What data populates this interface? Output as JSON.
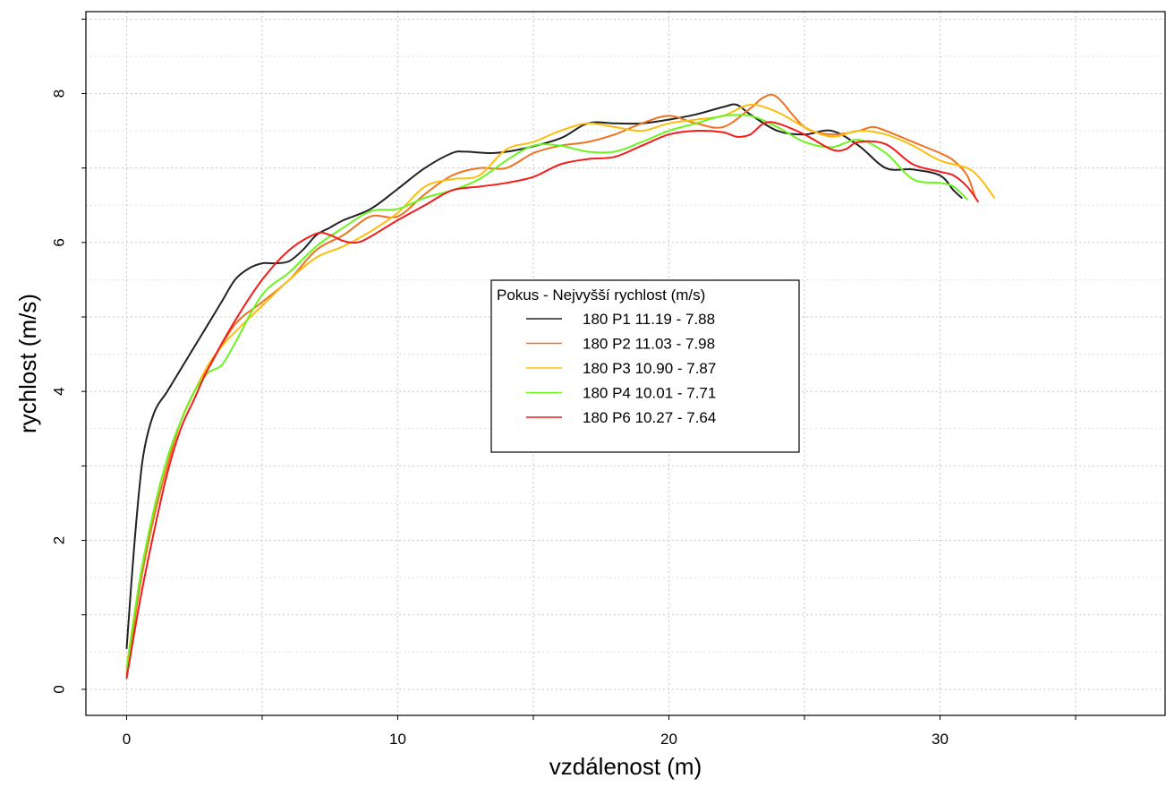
{
  "chart_data": {
    "type": "line",
    "xlabel": "vzdálenost (m)",
    "ylabel": "rychlost (m/s)",
    "xlim": [
      -1.5,
      38.3
    ],
    "ylim": [
      -0.35,
      9.1
    ],
    "xticks": [
      0,
      10,
      20,
      30
    ],
    "xtick_labels": [
      "0",
      "10",
      "20",
      "30"
    ],
    "yticks": [
      0,
      2,
      4,
      6,
      8
    ],
    "ytick_labels": [
      "0",
      "2",
      "4",
      "6",
      "8"
    ],
    "grid": true,
    "legend": {
      "title": "Pokus - Nejvyšší rychlost (m/s)",
      "position": "center"
    },
    "series": [
      {
        "name": "180 P1 11.19 - 7.88",
        "color": "#222222",
        "x": [
          0,
          0.3,
          0.6,
          1,
          1.5,
          2,
          2.5,
          3,
          3.5,
          4,
          4.5,
          5,
          5.5,
          6,
          6.5,
          7,
          7.5,
          8,
          9,
          10,
          11,
          12,
          12.5,
          13.5,
          14.5,
          16,
          17,
          18,
          19,
          20,
          21,
          22,
          22.5,
          23,
          24,
          25,
          26,
          27,
          28,
          29,
          30,
          30.5,
          30.8
        ],
        "y": [
          0.55,
          2.0,
          3.1,
          3.7,
          4.0,
          4.3,
          4.6,
          4.9,
          5.2,
          5.5,
          5.65,
          5.72,
          5.72,
          5.75,
          5.9,
          6.1,
          6.2,
          6.3,
          6.45,
          6.72,
          7.0,
          7.2,
          7.22,
          7.2,
          7.25,
          7.4,
          7.6,
          7.6,
          7.6,
          7.65,
          7.72,
          7.82,
          7.85,
          7.72,
          7.5,
          7.45,
          7.5,
          7.3,
          7.0,
          6.98,
          6.9,
          6.7,
          6.6
        ]
      },
      {
        "name": "180 P2 11.03 - 7.98",
        "color": "#ef7222",
        "x": [
          0,
          0.5,
          1,
          1.5,
          2,
          2.5,
          3,
          4,
          5,
          6,
          7,
          8,
          9,
          10,
          11,
          12,
          13,
          14,
          15,
          16,
          17,
          18,
          19,
          20,
          21,
          22,
          23,
          23.5,
          24,
          25,
          26,
          27,
          27.5,
          28,
          29,
          30,
          30.5,
          31,
          31.3
        ],
        "y": [
          0.2,
          1.4,
          2.3,
          3.0,
          3.6,
          4.0,
          4.3,
          4.9,
          5.2,
          5.5,
          5.9,
          6.1,
          6.35,
          6.35,
          6.65,
          6.9,
          7.0,
          7.0,
          7.2,
          7.3,
          7.35,
          7.45,
          7.6,
          7.7,
          7.6,
          7.55,
          7.8,
          7.95,
          7.95,
          7.55,
          7.45,
          7.5,
          7.55,
          7.5,
          7.35,
          7.2,
          7.1,
          6.9,
          6.6
        ]
      },
      {
        "name": "180 P3 10.90 - 7.87",
        "color": "#fbbf12",
        "x": [
          0,
          0.5,
          1,
          1.5,
          2,
          2.5,
          3,
          3.5,
          4,
          5,
          6,
          7,
          8,
          9,
          10,
          11,
          12,
          13,
          14,
          15,
          16,
          17,
          18,
          19,
          20,
          21,
          22,
          23,
          24,
          25,
          26,
          27,
          28,
          29,
          30,
          31,
          31.5,
          32
        ],
        "y": [
          0.3,
          1.5,
          2.4,
          3.1,
          3.6,
          4.0,
          4.35,
          4.6,
          4.8,
          5.15,
          5.5,
          5.8,
          5.95,
          6.15,
          6.4,
          6.75,
          6.85,
          6.9,
          7.25,
          7.35,
          7.5,
          7.6,
          7.55,
          7.5,
          7.6,
          7.65,
          7.7,
          7.85,
          7.75,
          7.55,
          7.42,
          7.5,
          7.45,
          7.3,
          7.1,
          7.0,
          6.85,
          6.6
        ]
      },
      {
        "name": "180 P4 10.01 - 7.71",
        "color": "#6bf51e",
        "x": [
          0,
          0.5,
          1,
          1.5,
          2,
          2.5,
          3,
          3.5,
          4,
          5,
          6,
          7,
          8,
          9,
          10,
          11,
          12,
          13,
          14,
          15,
          16,
          17,
          18,
          19,
          20,
          21,
          22,
          23,
          24,
          25,
          26,
          27,
          28,
          29,
          30,
          30.5,
          31
        ],
        "y": [
          0.25,
          1.5,
          2.4,
          3.1,
          3.6,
          4.0,
          4.25,
          4.35,
          4.65,
          5.3,
          5.6,
          5.95,
          6.2,
          6.42,
          6.45,
          6.6,
          6.7,
          6.85,
          7.1,
          7.3,
          7.3,
          7.22,
          7.22,
          7.35,
          7.5,
          7.6,
          7.7,
          7.7,
          7.55,
          7.35,
          7.28,
          7.38,
          7.2,
          6.85,
          6.8,
          6.75,
          6.58
        ]
      },
      {
        "name": "180 P6 10.27 - 7.64",
        "color": "#f21c1c",
        "x": [
          0,
          0.5,
          1,
          1.5,
          2,
          2.5,
          3,
          4,
          5,
          6,
          7,
          7.5,
          8,
          8.5,
          9,
          10,
          11,
          12,
          13,
          14,
          15,
          16,
          17,
          18,
          19,
          20,
          21,
          22,
          22.5,
          23,
          23.5,
          24,
          25,
          26,
          26.5,
          27,
          28,
          29,
          30,
          30.5,
          31,
          31.4
        ],
        "y": [
          0.15,
          1.2,
          2.1,
          2.9,
          3.5,
          3.9,
          4.3,
          4.95,
          5.5,
          5.9,
          6.12,
          6.1,
          6.02,
          6.0,
          6.08,
          6.3,
          6.5,
          6.7,
          6.75,
          6.8,
          6.88,
          7.05,
          7.12,
          7.15,
          7.3,
          7.45,
          7.5,
          7.48,
          7.42,
          7.45,
          7.6,
          7.6,
          7.45,
          7.25,
          7.25,
          7.35,
          7.32,
          7.05,
          6.95,
          6.9,
          6.75,
          6.55
        ]
      }
    ]
  }
}
